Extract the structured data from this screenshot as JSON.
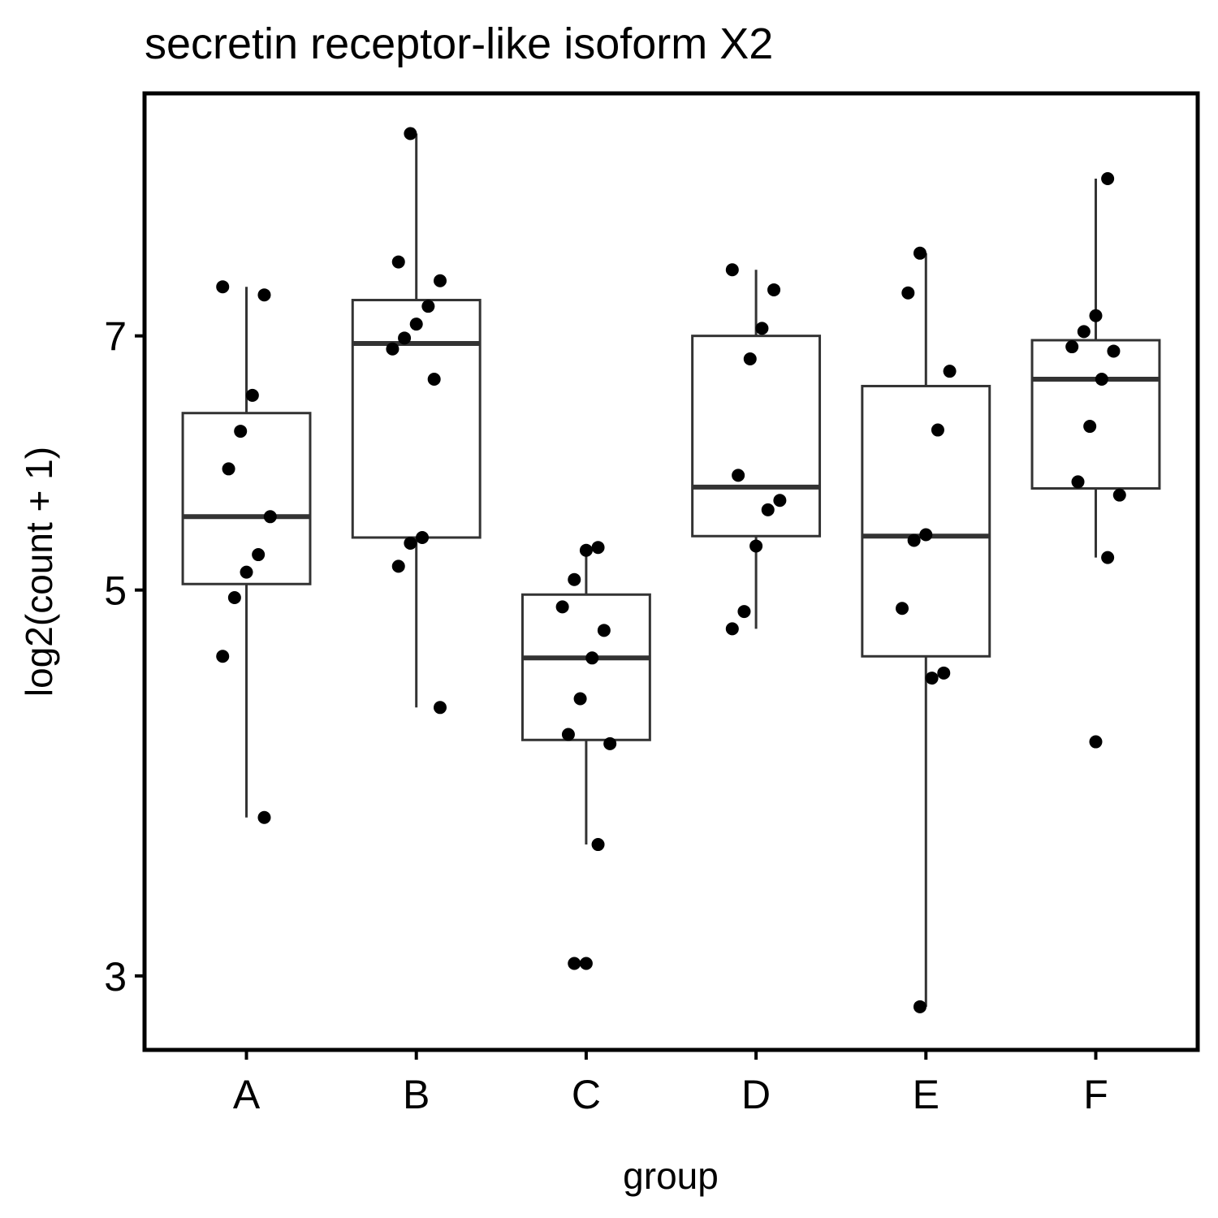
{
  "chart_data": {
    "type": "box",
    "title": "secretin receptor-like isoform X2",
    "x_label": "group",
    "y_label": "log2(count + 1)",
    "categories": [
      "A",
      "B",
      "C",
      "D",
      "E",
      "F"
    ],
    "ylim": [
      2.72,
      9.65
    ],
    "yticks": [
      3,
      5,
      7
    ],
    "log_scale": "y",
    "grid": false,
    "box_color": "#333333",
    "point_color": "#000000",
    "boxes": [
      {
        "whisker_low": 3.7,
        "q1": 5.04,
        "median": 5.51,
        "q3": 6.32,
        "whisker_high": 7.47,
        "points": [
          7.47,
          7.39,
          6.47,
          6.17,
          5.87,
          5.51,
          5.24,
          5.12,
          4.95,
          4.58,
          3.7
        ]
      },
      {
        "whisker_low": 4.28,
        "q1": 5.36,
        "median": 6.93,
        "q3": 7.34,
        "whisker_high": 9.15,
        "points": [
          9.15,
          7.72,
          7.53,
          7.28,
          7.11,
          6.98,
          6.88,
          6.61,
          5.36,
          5.32,
          5.16,
          4.28
        ]
      },
      {
        "whisker_low": 3.57,
        "q1": 4.1,
        "median": 4.57,
        "q3": 4.97,
        "whisker_high": 5.29,
        "points": [
          5.29,
          5.27,
          5.07,
          4.89,
          4.74,
          4.57,
          4.33,
          4.13,
          4.08,
          3.57,
          3.05,
          3.05
        ]
      },
      {
        "whisker_low": 4.75,
        "q1": 5.37,
        "median": 5.73,
        "q3": 7.0,
        "whisker_high": 7.64,
        "points": [
          7.64,
          7.44,
          7.07,
          6.79,
          5.82,
          5.63,
          5.56,
          5.3,
          4.86,
          4.75
        ]
      },
      {
        "whisker_low": 2.88,
        "q1": 4.58,
        "median": 5.37,
        "q3": 6.55,
        "whisker_high": 7.81,
        "points": [
          7.81,
          7.41,
          6.68,
          6.18,
          5.38,
          5.34,
          4.88,
          4.48,
          4.45,
          2.88
        ]
      },
      {
        "whisker_low": 5.22,
        "q1": 5.72,
        "median": 6.61,
        "q3": 6.96,
        "whisker_high": 8.62,
        "points": [
          8.62,
          7.19,
          7.04,
          6.9,
          6.86,
          6.61,
          6.21,
          5.77,
          5.67,
          5.22,
          4.09
        ]
      }
    ]
  }
}
